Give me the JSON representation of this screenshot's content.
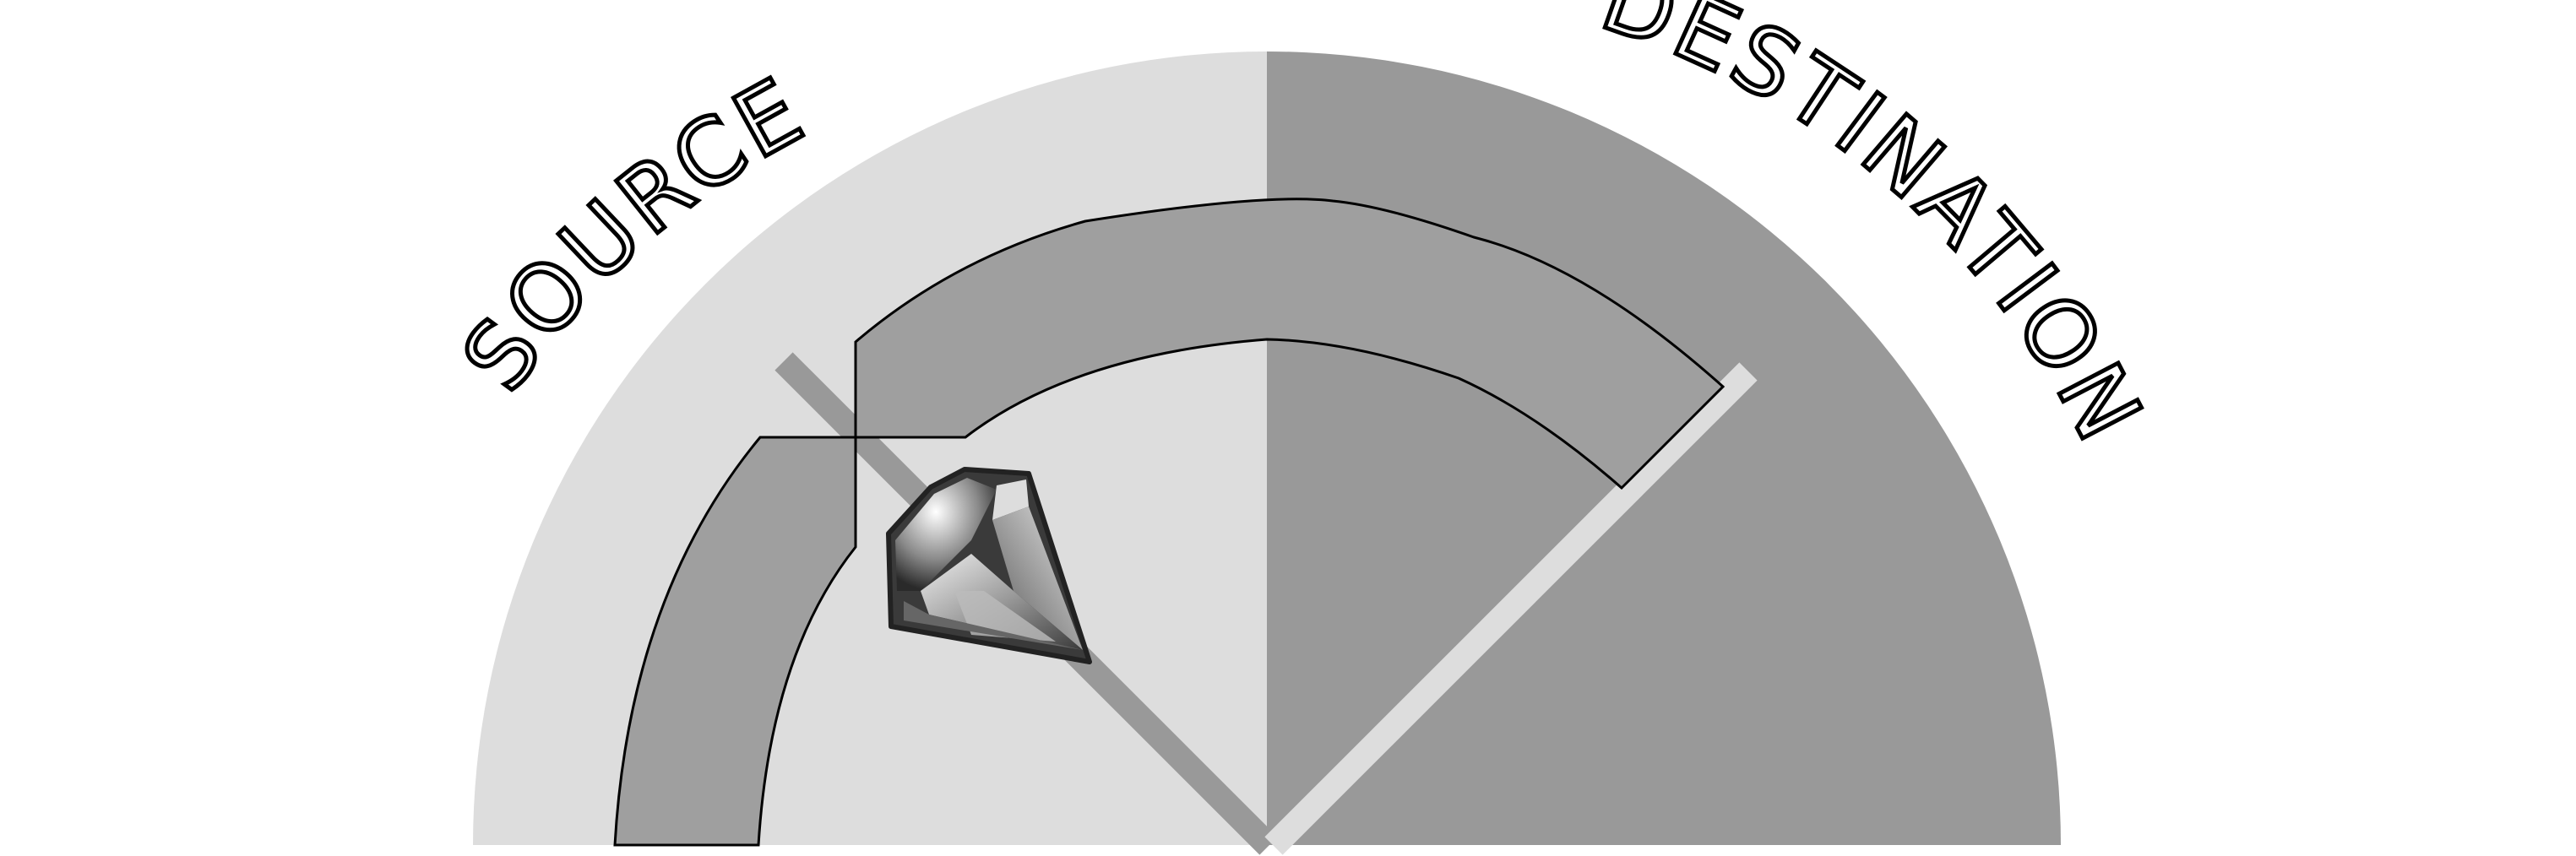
{
  "labels": {
    "source": "SOURCE",
    "destination": "DESTINATION"
  },
  "colors": {
    "background": "#ffffff",
    "source_half": "#dddddd",
    "destination_half": "#999999",
    "path": "#9f9f9f",
    "source_divider": "#999999",
    "destination_divider": "#dddddd",
    "outline": "#000000",
    "gem_dark": "#333333",
    "gem_light": "#cccccc"
  },
  "icons": {
    "gem": "gem-icon"
  }
}
